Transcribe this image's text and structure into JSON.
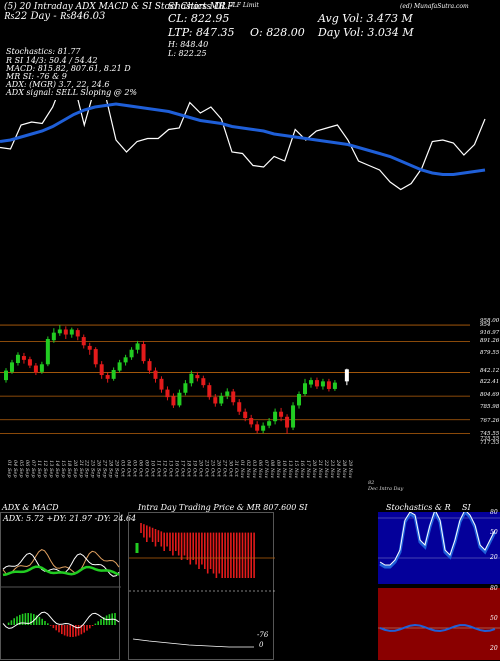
{
  "header": {
    "top_left": "(5) 20 Intraday ADX MACD & SI Stochastics MR",
    "top_left_line2": "₨22 Day - ₨846.03",
    "center_title": "SI Charts DLF",
    "company": "DLF Limit",
    "site": "(ed) MunafaSutra.com",
    "close": "CL: 822.95",
    "ltp": "LTP: 847.35",
    "open": "O: 828.00",
    "high": "H: 848.40",
    "low": "L: 822.25",
    "avg_vol": "Avg Vol: 3.473 M",
    "day_vol": "Day Vol: 3.034 M"
  },
  "indicators": [
    "Stochastics: 81.77",
    "R    SI 14/3: 50.4 / 54.42",
    "MACD: 815.82,  807.61,  8.21 D",
    "MR    SI: -76  & 9",
    "ADX:    (MGR) 3.7,  22,  24.6",
    "ADX signal: SELL Sloping @ 2%"
  ],
  "chart_data": [
    {
      "type": "line",
      "panel": "top",
      "description_note": "",
      "series": [
        {
          "name": "",
          "color": "#ffffff",
          "values": [
            195,
            196,
            180,
            178,
            179,
            168,
            150,
            152,
            180,
            155,
            160,
            190,
            198,
            191,
            189,
            189,
            183,
            182,
            165,
            172,
            168,
            176,
            198,
            199,
            207,
            208,
            201,
            204,
            183,
            190,
            184,
            182,
            180,
            190,
            204,
            207,
            210,
            218,
            223,
            219,
            209,
            191,
            190,
            192,
            200,
            193,
            176
          ]
        },
        {
          "name": "",
          "color": "#1f5fd8",
          "values": [
            191,
            190,
            188,
            186,
            184,
            181,
            177,
            173,
            170,
            168,
            167,
            166,
            167,
            168,
            169,
            170,
            171,
            173,
            175,
            177,
            178,
            179,
            181,
            182,
            183,
            184,
            186,
            187,
            188,
            189,
            190,
            191,
            192,
            193,
            195,
            197,
            199,
            201,
            204,
            207,
            210,
            212,
            213,
            213,
            212,
            211,
            210
          ]
        }
      ]
    },
    {
      "type": "candlestick",
      "panel": "price",
      "y_ticks": [
        "958.00",
        "954",
        "916.97",
        "891.26",
        "879.55",
        "842.12",
        "822.41",
        "804.69",
        "785.98",
        "767.26",
        "745.55",
        "735.55",
        "717.53"
      ],
      "x_labels": [
        "01 Sep",
        "04 Sep",
        "05 Sep",
        "06 Sep",
        "07 Sep",
        "11 Sep",
        "12 Sep",
        "13 Sep",
        "14 Sep",
        "15 Sep",
        "18 Sep",
        "20 Sep",
        "21 Sep",
        "22 Sep",
        "25 Sep",
        "26 Sep",
        "27 Sep",
        "28 Sep",
        "29 Sep",
        "03 Oct",
        "04 Oct",
        "05 Oct",
        "06 Oct",
        "09 Oct",
        "10 Oct",
        "11 Oct",
        "12 Oct",
        "13 Oct",
        "16 Oct",
        "17 Oct",
        "18 Oct",
        "19 Oct",
        "20 Oct",
        "23 Oct",
        "25 Oct",
        "26 Oct",
        "27 Oct",
        "30 Oct",
        "31 Oct",
        "01 Nov",
        "02 Nov",
        "03 Nov",
        "06 Nov",
        "07 Nov",
        "08 Nov",
        "09 Nov",
        "10 Nov",
        "13 Nov",
        "15 Nov",
        "16 Nov",
        "17 Nov",
        "20 Nov",
        "21 Nov",
        "22 Nov",
        "23 Nov",
        "24 Nov",
        "28 Nov",
        "29 Nov"
      ],
      "bottom_note": "82",
      "bottom_note2": "Dec Intra Day",
      "candles": [
        {
          "o": 830,
          "c": 845,
          "h": 849,
          "l": 826
        },
        {
          "o": 843,
          "c": 858,
          "h": 862,
          "l": 840
        },
        {
          "o": 857,
          "c": 870,
          "h": 874,
          "l": 853
        },
        {
          "o": 868,
          "c": 862,
          "h": 873,
          "l": 856
        },
        {
          "o": 863,
          "c": 853,
          "h": 867,
          "l": 849
        },
        {
          "o": 853,
          "c": 842,
          "h": 857,
          "l": 838
        },
        {
          "o": 843,
          "c": 855,
          "h": 859,
          "l": 840
        },
        {
          "o": 855,
          "c": 895,
          "h": 899,
          "l": 852
        },
        {
          "o": 893,
          "c": 905,
          "h": 912,
          "l": 889
        },
        {
          "o": 904,
          "c": 910,
          "h": 917,
          "l": 900
        },
        {
          "o": 910,
          "c": 902,
          "h": 915,
          "l": 895
        },
        {
          "o": 902,
          "c": 910,
          "h": 913,
          "l": 897
        },
        {
          "o": 909,
          "c": 899,
          "h": 912,
          "l": 893
        },
        {
          "o": 898,
          "c": 885,
          "h": 902,
          "l": 880
        },
        {
          "o": 884,
          "c": 878,
          "h": 889,
          "l": 870
        },
        {
          "o": 879,
          "c": 855,
          "h": 882,
          "l": 850
        },
        {
          "o": 855,
          "c": 838,
          "h": 860,
          "l": 832
        },
        {
          "o": 838,
          "c": 832,
          "h": 842,
          "l": 826
        },
        {
          "o": 832,
          "c": 846,
          "h": 850,
          "l": 829
        },
        {
          "o": 845,
          "c": 858,
          "h": 862,
          "l": 842
        },
        {
          "o": 858,
          "c": 866,
          "h": 870,
          "l": 853
        },
        {
          "o": 866,
          "c": 878,
          "h": 882,
          "l": 862
        },
        {
          "o": 878,
          "c": 888,
          "h": 892,
          "l": 872
        },
        {
          "o": 887,
          "c": 860,
          "h": 892,
          "l": 856
        },
        {
          "o": 860,
          "c": 845,
          "h": 864,
          "l": 840
        },
        {
          "o": 845,
          "c": 832,
          "h": 850,
          "l": 826
        },
        {
          "o": 832,
          "c": 815,
          "h": 836,
          "l": 810
        },
        {
          "o": 815,
          "c": 803,
          "h": 820,
          "l": 798
        },
        {
          "o": 804,
          "c": 790,
          "h": 809,
          "l": 786
        },
        {
          "o": 790,
          "c": 810,
          "h": 815,
          "l": 787
        },
        {
          "o": 810,
          "c": 825,
          "h": 830,
          "l": 806
        },
        {
          "o": 825,
          "c": 840,
          "h": 845,
          "l": 820
        },
        {
          "o": 838,
          "c": 833,
          "h": 843,
          "l": 828
        },
        {
          "o": 833,
          "c": 822,
          "h": 837,
          "l": 818
        },
        {
          "o": 822,
          "c": 803,
          "h": 826,
          "l": 799
        },
        {
          "o": 803,
          "c": 793,
          "h": 808,
          "l": 788
        },
        {
          "o": 793,
          "c": 805,
          "h": 810,
          "l": 789
        },
        {
          "o": 805,
          "c": 812,
          "h": 817,
          "l": 800
        },
        {
          "o": 812,
          "c": 795,
          "h": 816,
          "l": 790
        },
        {
          "o": 795,
          "c": 780,
          "h": 800,
          "l": 775
        },
        {
          "o": 780,
          "c": 770,
          "h": 785,
          "l": 765
        },
        {
          "o": 770,
          "c": 760,
          "h": 775,
          "l": 755
        },
        {
          "o": 760,
          "c": 750,
          "h": 765,
          "l": 746
        },
        {
          "o": 750,
          "c": 758,
          "h": 763,
          "l": 746
        },
        {
          "o": 758,
          "c": 765,
          "h": 770,
          "l": 754
        },
        {
          "o": 765,
          "c": 780,
          "h": 785,
          "l": 760
        },
        {
          "o": 780,
          "c": 772,
          "h": 786,
          "l": 765
        },
        {
          "o": 772,
          "c": 755,
          "h": 776,
          "l": 745
        },
        {
          "o": 755,
          "c": 790,
          "h": 795,
          "l": 751
        },
        {
          "o": 790,
          "c": 808,
          "h": 812,
          "l": 785
        },
        {
          "o": 808,
          "c": 825,
          "h": 832,
          "l": 805
        },
        {
          "o": 823,
          "c": 830,
          "h": 834,
          "l": 818
        },
        {
          "o": 830,
          "c": 820,
          "h": 834,
          "l": 816
        },
        {
          "o": 820,
          "c": 828,
          "h": 832,
          "l": 815
        },
        {
          "o": 828,
          "c": 816,
          "h": 832,
          "l": 812
        },
        {
          "o": 816,
          "c": 826,
          "h": 830,
          "l": 813
        },
        {
          "o": 0,
          "c": 0,
          "h": 0,
          "l": 0
        },
        {
          "o": 828,
          "c": 847,
          "h": 848,
          "l": 822
        }
      ],
      "highlight_color": "#ffffff"
    }
  ],
  "panels": {
    "adx": {
      "title": "ADX  & MACD",
      "values_text": "ADX: 5.72  +DY: 21.97 -DY: 24.64"
    },
    "intraday": {
      "title": "Intra Day Trading Price  & MR  807.600 SI",
      "level_a": "-76",
      "level_b": "0"
    },
    "stoch": {
      "title": "Stochastics & R",
      "title_b": "SI",
      "ticks_top": [
        "80",
        "50",
        "20"
      ],
      "ticks_bottom": [
        "80",
        "50",
        "20"
      ]
    }
  },
  "colors": {
    "green": "#22cc22",
    "red": "#e31b1b",
    "blue": "#1f5fd8",
    "orange_line": "#b8620d",
    "navy": "#04009a",
    "maroon": "#8a0000"
  }
}
